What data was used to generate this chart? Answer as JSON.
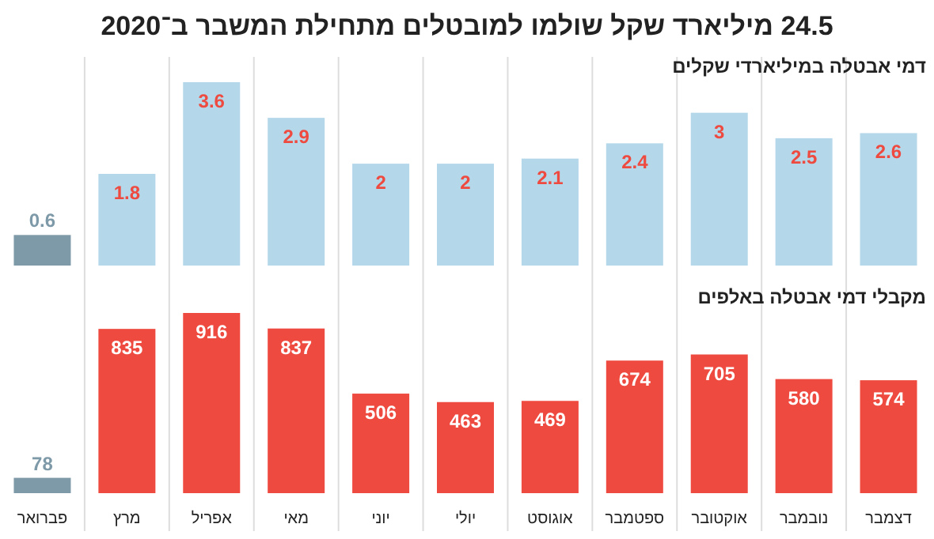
{
  "chart_data": [
    {
      "type": "bar",
      "title": "24.5 מיליארד שקל שולמו למובטלים מתחילת המשבר ב־2020",
      "subtitle": "דמי אבטלה במיליארדי שקלים",
      "categories": [
        null,
        null,
        null,
        null,
        null,
        null,
        null,
        null,
        null,
        null,
        null
      ],
      "values": [
        0.6,
        1.8,
        3.6,
        2.9,
        2,
        2,
        2.1,
        2.4,
        3,
        2.5,
        2.6
      ],
      "colors": [
        "#7e99a8",
        "#b5d7ea",
        "#b5d7ea",
        "#b5d7ea",
        "#b5d7ea",
        "#b5d7ea",
        "#b5d7ea",
        "#b5d7ea",
        "#b5d7ea",
        "#b5d7ea",
        "#b5d7ea"
      ],
      "data_labels": true,
      "grid": "x"
    },
    {
      "type": "bar",
      "subtitle": "מקבלי דמי אבטלה באלפים",
      "categories": [
        "פברואר",
        "מרץ",
        "אפריל",
        "מאי",
        "יוני",
        "יולי",
        "אוגוסט",
        "ספטמבר",
        "אוקטובר",
        "נובמבר",
        "דצמבר"
      ],
      "values": [
        78,
        835,
        916,
        837,
        506,
        463,
        469,
        674,
        705,
        580,
        574
      ],
      "colors": [
        "#7e99a8",
        "#ee4a3f",
        "#ee4a3f",
        "#ee4a3f",
        "#ee4a3f",
        "#ee4a3f",
        "#ee4a3f",
        "#ee4a3f",
        "#ee4a3f",
        "#ee4a3f",
        "#ee4a3f"
      ],
      "data_labels": true,
      "grid": "x"
    }
  ]
}
